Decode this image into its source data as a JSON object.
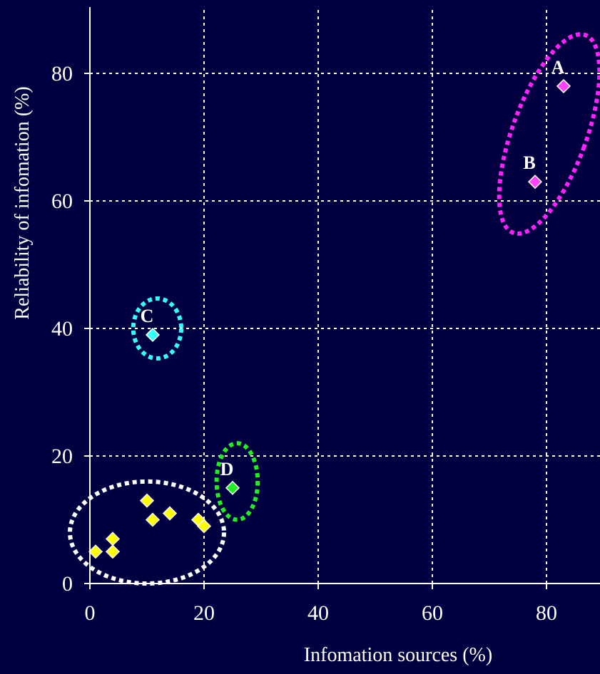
{
  "chart_data": {
    "type": "scatter",
    "xlabel": "Infomation sources (%)",
    "ylabel": "Reliability of infomation (%)",
    "xlim": [
      0,
      90
    ],
    "ylim": [
      0,
      90
    ],
    "x_ticks": [
      0,
      20,
      40,
      60,
      80
    ],
    "y_ticks": [
      0,
      20,
      40,
      60,
      80
    ],
    "grid": true,
    "grid_style": "dotted",
    "background": "#000040",
    "points": [
      {
        "label": "A",
        "x": 83,
        "y": 78,
        "color": "#ff44ff"
      },
      {
        "label": "B",
        "x": 78,
        "y": 63,
        "color": "#ff44ff"
      },
      {
        "label": "C",
        "x": 11,
        "y": 39,
        "color": "#33ffff"
      },
      {
        "label": "D",
        "x": 25,
        "y": 15,
        "color": "#22ee22"
      },
      {
        "label": "",
        "x": 1,
        "y": 5,
        "color": "#ffff00"
      },
      {
        "label": "",
        "x": 4,
        "y": 7,
        "color": "#ffff00"
      },
      {
        "label": "",
        "x": 4,
        "y": 5,
        "color": "#ffff00"
      },
      {
        "label": "",
        "x": 10,
        "y": 13,
        "color": "#ffff00"
      },
      {
        "label": "",
        "x": 11,
        "y": 10,
        "color": "#ffff00"
      },
      {
        "label": "",
        "x": 14,
        "y": 11,
        "color": "#ffff00"
      },
      {
        "label": "",
        "x": 19,
        "y": 10,
        "color": "#ffff00"
      },
      {
        "label": "",
        "x": 20,
        "y": 9,
        "color": "#ffff00"
      }
    ],
    "groups": [
      {
        "members": [
          "A",
          "B"
        ],
        "color": "#ff22ff",
        "center": [
          80.5,
          70.5
        ],
        "radius": [
          6.5,
          16.5
        ],
        "rotation_deg": 20
      },
      {
        "members": [
          "C"
        ],
        "color": "#33ffff",
        "center": [
          11.8,
          40
        ],
        "radius": [
          4.2,
          4.7
        ],
        "rotation_deg": 0
      },
      {
        "members": [
          "D"
        ],
        "color": "#22ee22",
        "center": [
          25.8,
          16
        ],
        "radius": [
          3.6,
          6
        ],
        "rotation_deg": 0
      },
      {
        "members": [
          "yellow cluster"
        ],
        "color": "#ffffff",
        "center": [
          10,
          8
        ],
        "radius": [
          13.5,
          8
        ],
        "rotation_deg": 0
      }
    ]
  }
}
